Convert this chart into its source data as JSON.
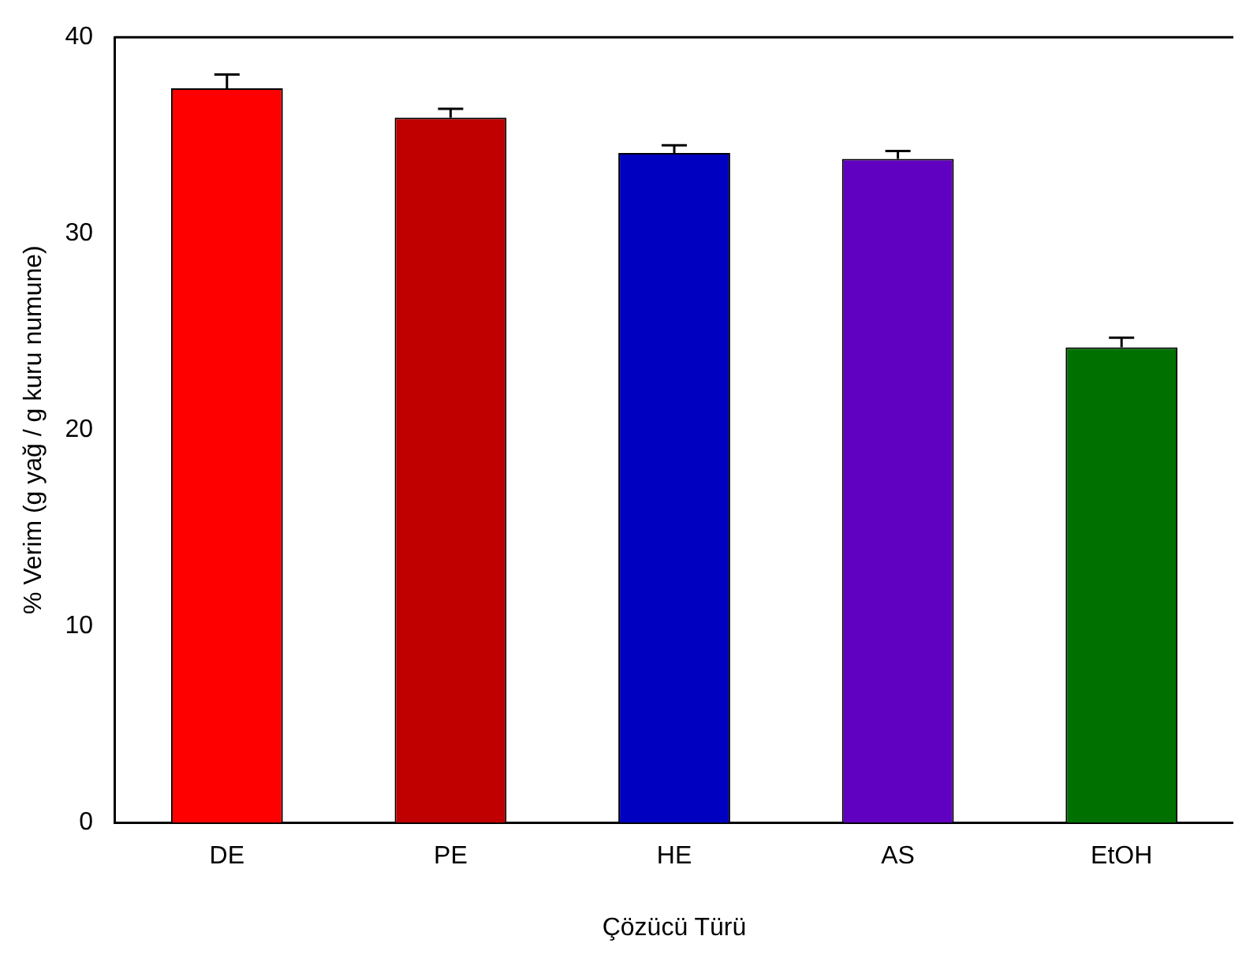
{
  "chart_data": {
    "type": "bar",
    "xlabel": "Çözücü Türü",
    "ylabel": "% Verim (g yağ / g kuru numune)",
    "categories": [
      "DE",
      "PE",
      "HE",
      "AS",
      "EtOH"
    ],
    "values": [
      37.4,
      35.9,
      34.1,
      33.8,
      24.2
    ],
    "errors": [
      0.7,
      0.45,
      0.4,
      0.4,
      0.5
    ],
    "colors": [
      "#ff0000",
      "#c00000",
      "#0000c0",
      "#6000c0",
      "#007000"
    ],
    "ylim": [
      0,
      40
    ],
    "yticks": [
      0,
      10,
      20,
      30,
      40
    ],
    "grid": false,
    "legend": false
  }
}
